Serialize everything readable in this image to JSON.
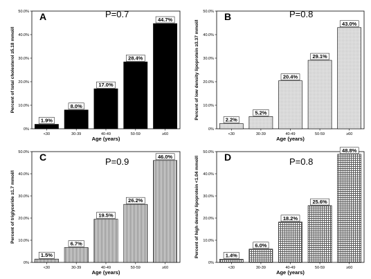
{
  "chart_data": [
    {
      "type": "bar",
      "panel": "A",
      "pvalue": "P=0.7",
      "categories": [
        "<30",
        "30-39",
        "40-49",
        "50-59",
        "≥60"
      ],
      "values": [
        1.9,
        8.0,
        17.0,
        28.4,
        44.7
      ],
      "data_labels": [
        "1.9%",
        "8.0%",
        "17.0%",
        "28.4%",
        "44.7%"
      ],
      "ylabel": "Percent of total cholesterol ≥5.18 mmol/l",
      "xlabel": "Age (years)",
      "ylim": [
        0,
        50
      ],
      "yticks": [
        "0%",
        "10.0%",
        "20.0%",
        "30.0%",
        "40.0%",
        "50.0%"
      ],
      "fill": "solid-black",
      "color": "#000000",
      "grid": false
    },
    {
      "type": "bar",
      "panel": "B",
      "pvalue": "P=0.8",
      "categories": [
        "<30",
        "30-39",
        "40-49",
        "50-59",
        "≥60"
      ],
      "values": [
        2.2,
        5.2,
        20.4,
        29.1,
        43.0
      ],
      "data_labels": [
        "2.2%",
        "5.2%",
        "20.4%",
        "29.1%",
        "43.0%"
      ],
      "ylabel": "Percent of low density lipoprotein ≥3.37 mmol/l",
      "xlabel": "Age (years)",
      "ylim": [
        0,
        50
      ],
      "yticks": [
        "0%",
        "10.0%",
        "20.0%",
        "30.0%",
        "40.0%",
        "50.0%"
      ],
      "fill": "dotted-gray",
      "color": "#d8d8d8",
      "grid": false
    },
    {
      "type": "bar",
      "panel": "C",
      "pvalue": "P=0.9",
      "categories": [
        "<30",
        "30-39",
        "40-49",
        "50-59",
        "≥60"
      ],
      "values": [
        1.5,
        6.7,
        19.5,
        26.2,
        46.0
      ],
      "data_labels": [
        "1.5%",
        "6.7%",
        "19.5%",
        "26.2%",
        "46.0%"
      ],
      "ylabel": "Percent of triglyceride ≥1.7 mmol/l",
      "xlabel": "Age (years)",
      "ylim": [
        0,
        50
      ],
      "yticks": [
        "0%",
        "10.0%",
        "20.0%",
        "30.0%",
        "40.0%",
        "50.0%"
      ],
      "fill": "vertical-lines",
      "color": "#707070",
      "grid": false
    },
    {
      "type": "bar",
      "panel": "D",
      "pvalue": "P=0.8",
      "categories": [
        "<30",
        "30-39",
        "40-49",
        "50-59",
        "≥60"
      ],
      "values": [
        1.4,
        6.0,
        18.2,
        25.6,
        48.8
      ],
      "data_labels": [
        "1.4%",
        "6.0%",
        "18.2%",
        "25.6%",
        "48.8%"
      ],
      "ylabel": "Percent of high density lipoprotein <1.04 mmol/l",
      "xlabel": "Age (years)",
      "ylim": [
        0,
        50
      ],
      "yticks": [
        "0%",
        "10.0%",
        "20.0%",
        "30.0%",
        "40.0%",
        "50.0%"
      ],
      "fill": "grid-hatch",
      "color": "#707070",
      "grid": false
    }
  ]
}
